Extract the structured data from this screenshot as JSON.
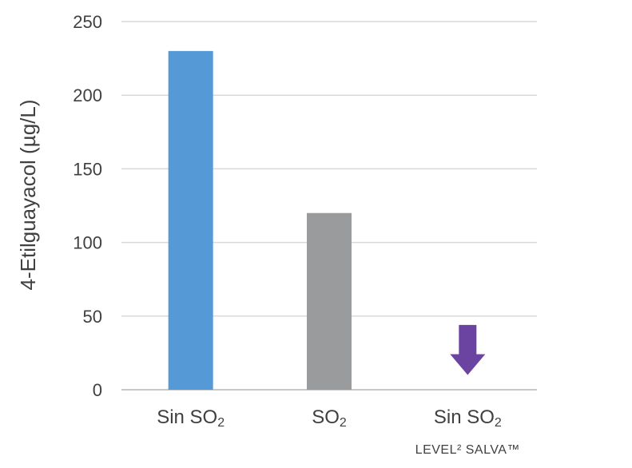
{
  "chart_data": {
    "type": "bar",
    "ylabel": "4-Etilguayacol (µg/L)",
    "ylim": [
      0,
      250
    ],
    "yticks": [
      "0",
      "50",
      "100",
      "150",
      "200",
      "250"
    ],
    "grid": true,
    "categories": [
      {
        "label": "Sin SO",
        "sub": "2",
        "extra": ""
      },
      {
        "label": "SO",
        "sub": "2",
        "extra": ""
      },
      {
        "label": "Sin SO",
        "sub": "2",
        "extra": "LEVEL² SALVA™"
      }
    ],
    "values": [
      230,
      120,
      null
    ],
    "colors": [
      "#559ad6",
      "#999b9c",
      null
    ],
    "markers": [
      null,
      null,
      {
        "type": "down-arrow",
        "color": "#6b44a1",
        "from": 44,
        "to": 10
      }
    ]
  }
}
